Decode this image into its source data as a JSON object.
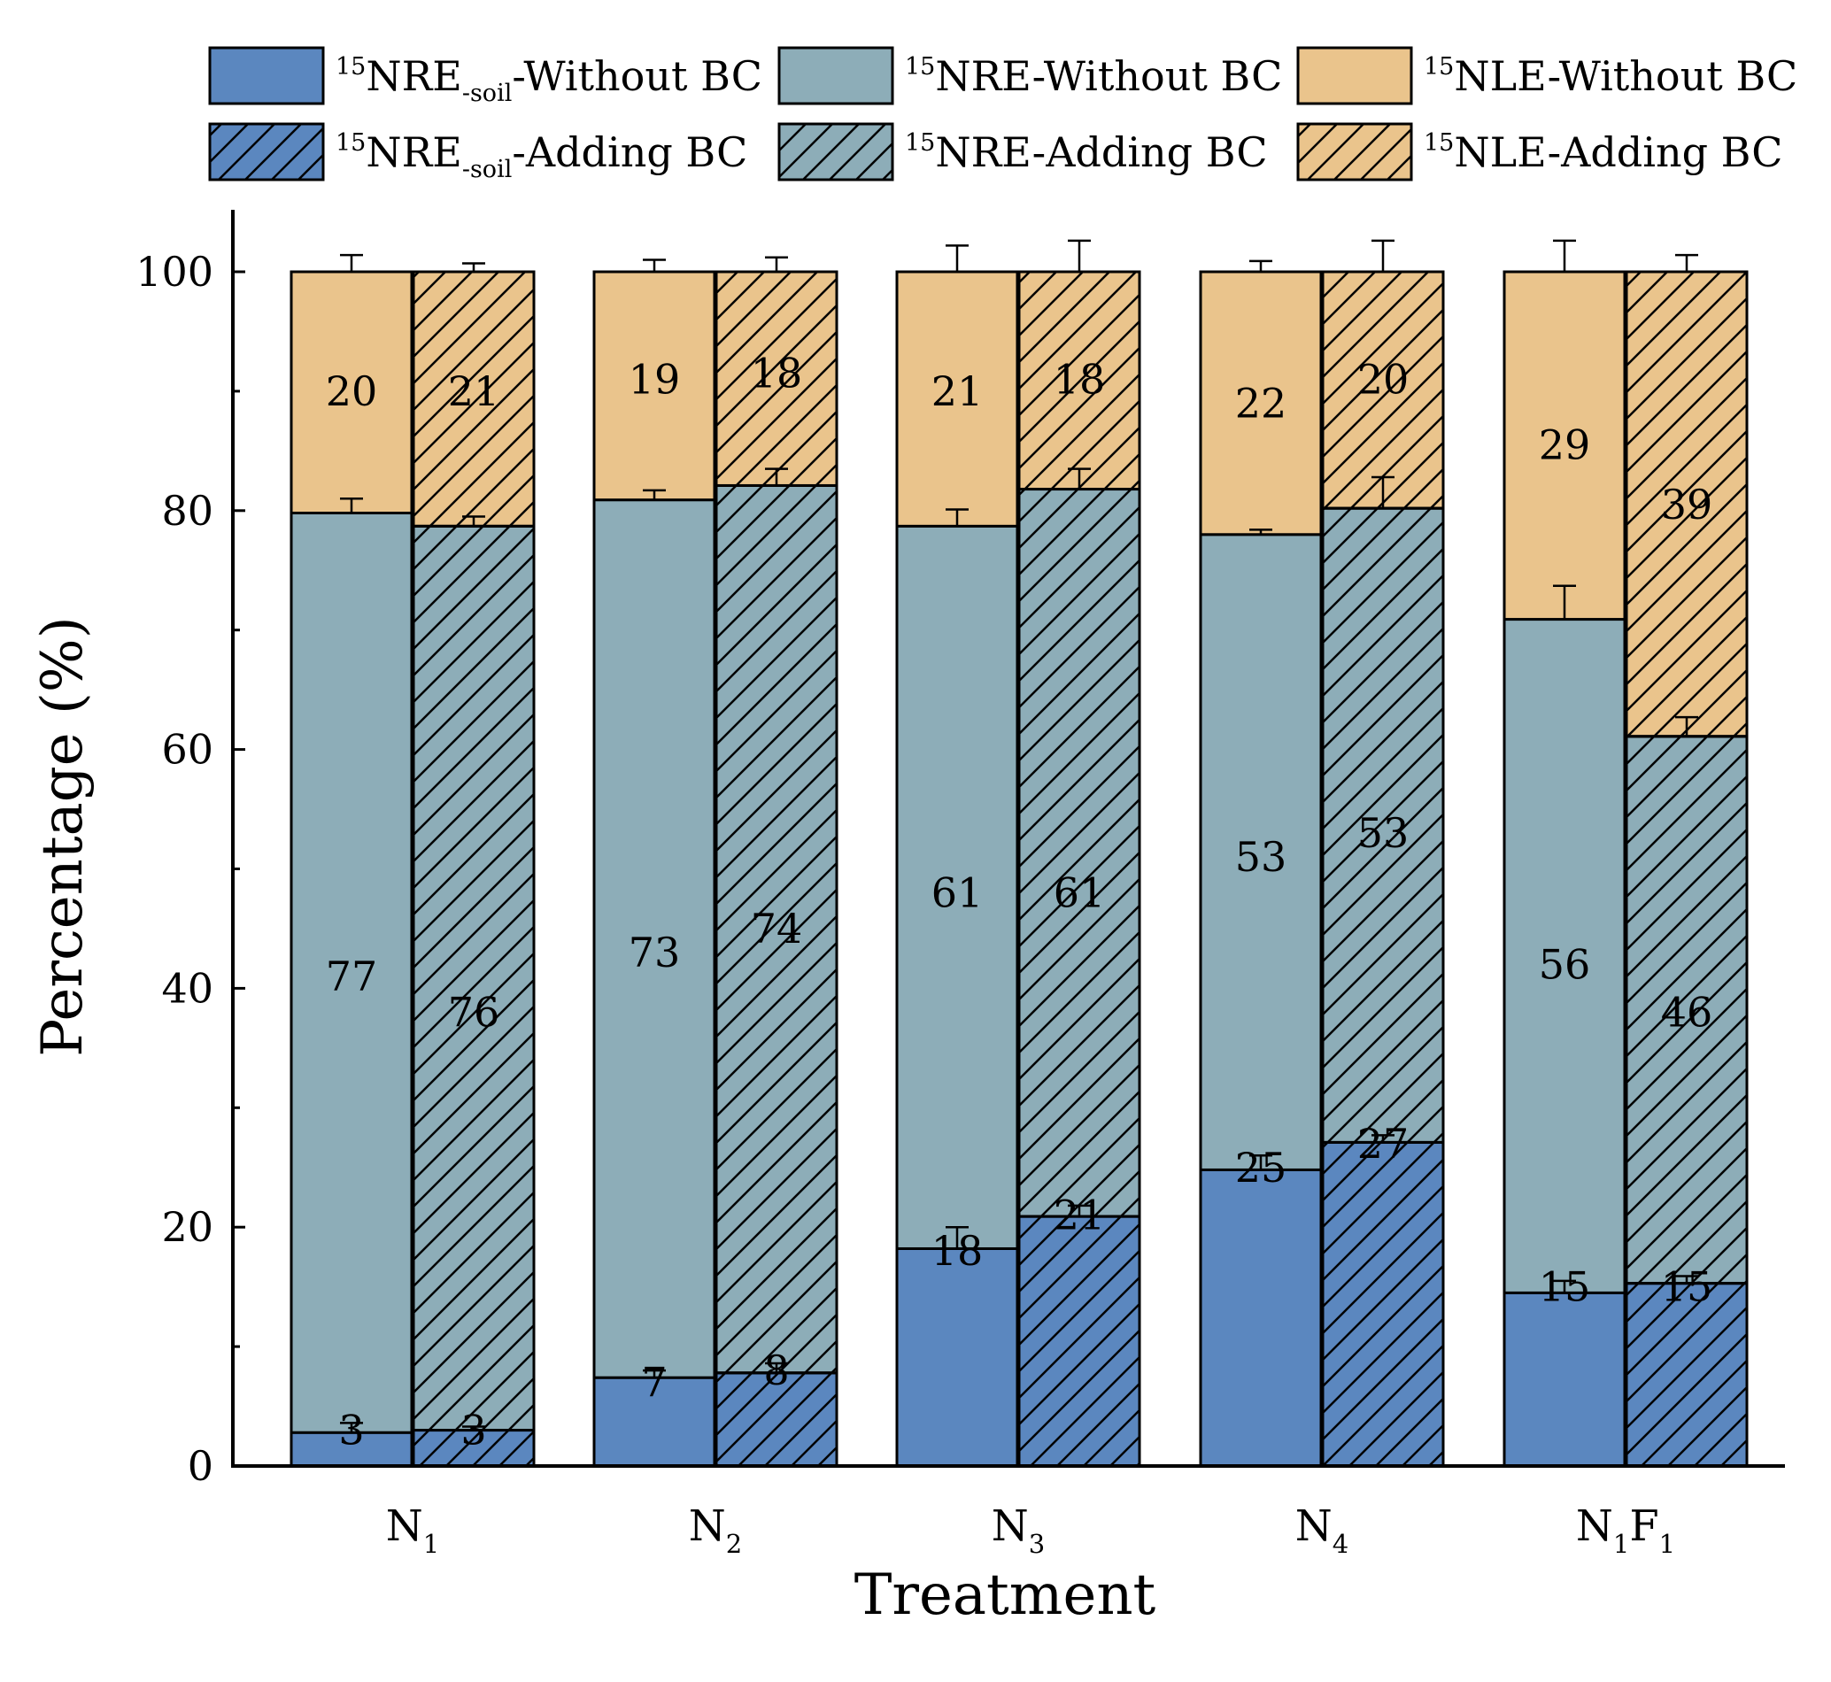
{
  "chart_data": {
    "type": "bar",
    "stacked": true,
    "title": "",
    "xlabel": "Treatment",
    "ylabel": "Percentage (%)",
    "ylim": [
      0,
      105
    ],
    "yticks": [
      0,
      20,
      40,
      60,
      80,
      100
    ],
    "ytick_labels": [
      "0",
      "20",
      "40",
      "60",
      "80",
      "100"
    ],
    "categories": [
      {
        "main": "N",
        "sub": "1",
        "tail": "",
        "tail_sub": ""
      },
      {
        "main": "N",
        "sub": "2",
        "tail": "",
        "tail_sub": ""
      },
      {
        "main": "N",
        "sub": "3",
        "tail": "",
        "tail_sub": ""
      },
      {
        "main": "N",
        "sub": "4",
        "tail": "",
        "tail_sub": ""
      },
      {
        "main": "N",
        "sub": "1",
        "tail": "F",
        "tail_sub": "1"
      }
    ],
    "bar_groups": [
      "Without BC",
      "Adding BC"
    ],
    "legend_position": "top",
    "components": [
      {
        "key": "nre_soil",
        "color": "#5b87bf"
      },
      {
        "key": "nre",
        "color": "#8dadb8"
      },
      {
        "key": "nle",
        "color": "#eac48c"
      }
    ],
    "series": [
      {
        "name": "15NRE-soil-Without BC",
        "group": "Without BC",
        "component": "nre_soil",
        "hatched": false,
        "values": [
          2.8,
          7.4,
          18.2,
          24.8,
          14.5
        ],
        "labels": [
          "3",
          "7",
          "18",
          "25",
          "15"
        ],
        "errors": [
          0.8,
          0.6,
          1.8,
          1.2,
          1.0
        ]
      },
      {
        "name": "15NRE-Without BC",
        "group": "Without BC",
        "component": "nre",
        "hatched": false,
        "values": [
          77.0,
          73.5,
          60.5,
          53.2,
          56.4
        ],
        "labels": [
          "77",
          "73",
          "61",
          "53",
          "56"
        ],
        "errors": [
          1.2,
          0.8,
          1.4,
          0.4,
          2.8
        ]
      },
      {
        "name": "15NLE-Without BC",
        "group": "Without BC",
        "component": "nle",
        "hatched": false,
        "values": [
          20.2,
          19.1,
          21.3,
          22.0,
          29.1
        ],
        "labels": [
          "20",
          "19",
          "21",
          "22",
          "29"
        ],
        "errors": [
          1.4,
          1.0,
          2.2,
          0.9,
          2.6
        ]
      },
      {
        "name": "15NRE-soil-Adding BC",
        "group": "Adding BC",
        "component": "nre_soil",
        "hatched": true,
        "values": [
          3.0,
          7.8,
          20.9,
          27.1,
          15.3
        ],
        "labels": [
          "3",
          "8",
          "21",
          "27",
          "15"
        ],
        "errors": [
          0.3,
          0.8,
          0.9,
          0.6,
          0.6
        ]
      },
      {
        "name": "15NRE-Adding BC",
        "group": "Adding BC",
        "component": "nre",
        "hatched": true,
        "values": [
          75.7,
          74.3,
          60.9,
          53.1,
          45.8
        ],
        "labels": [
          "76",
          "74",
          "61",
          "53",
          "46"
        ],
        "errors": [
          0.8,
          1.4,
          1.7,
          2.6,
          1.6
        ]
      },
      {
        "name": "15NLE-Adding BC",
        "group": "Adding BC",
        "component": "nle",
        "hatched": true,
        "values": [
          21.3,
          17.9,
          18.2,
          19.8,
          38.9
        ],
        "labels": [
          "21",
          "18",
          "18",
          "20",
          "39"
        ],
        "errors": [
          0.7,
          1.2,
          2.6,
          2.6,
          1.4
        ]
      }
    ],
    "label_positions_pct": {
      "Without BC": [
        [
          3,
          41,
          90
        ],
        [
          7,
          43,
          91
        ],
        [
          18,
          48,
          90
        ],
        [
          25,
          51,
          89
        ],
        [
          15,
          42,
          85.5
        ]
      ],
      "Adding BC": [
        [
          3,
          38,
          90
        ],
        [
          8,
          45,
          91.5
        ],
        [
          21,
          48,
          91
        ],
        [
          27,
          53,
          91
        ],
        [
          15,
          38,
          80.5
        ]
      ]
    },
    "legend": [
      {
        "sup": "15",
        "text": "NRE",
        "sub": "-soil",
        "suffix": "-Without BC",
        "color": "#5b87bf",
        "hatched": false
      },
      {
        "sup": "15",
        "text": "NRE-Without BC",
        "sub": "",
        "suffix": "",
        "color": "#8dadb8",
        "hatched": false
      },
      {
        "sup": "15",
        "text": "NLE-Without BC",
        "sub": "",
        "suffix": "",
        "color": "#eac48c",
        "hatched": false
      },
      {
        "sup": "15",
        "text": "NRE",
        "sub": "-soil",
        "suffix": "-Adding BC",
        "color": "#5b87bf",
        "hatched": true
      },
      {
        "sup": "15",
        "text": "NRE-Adding BC",
        "sub": "",
        "suffix": "",
        "color": "#8dadb8",
        "hatched": true
      },
      {
        "sup": "15",
        "text": "NLE-Adding BC",
        "sub": "",
        "suffix": "",
        "color": "#eac48c",
        "hatched": true
      }
    ]
  }
}
